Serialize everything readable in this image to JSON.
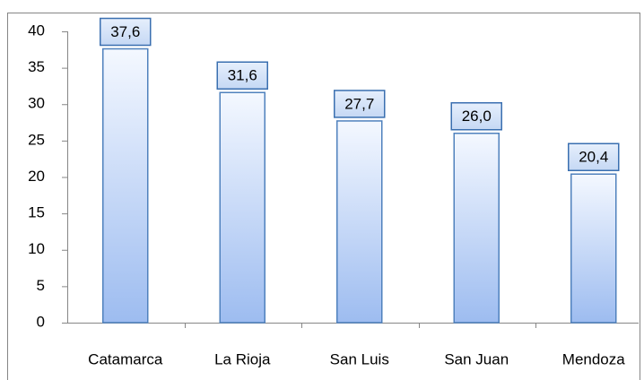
{
  "chart_data": {
    "type": "bar",
    "categories": [
      "Catamarca",
      "La Rioja",
      "San Luis",
      "San Juan",
      "Mendoza"
    ],
    "values": [
      37.6,
      31.6,
      27.7,
      26.0,
      20.4
    ],
    "value_labels": [
      "37,6",
      "31,6",
      "27,7",
      "26,0",
      "20,4"
    ],
    "color": "#4f81bd",
    "ylim": [
      0,
      40
    ],
    "yticks": [
      0,
      5,
      10,
      15,
      20,
      25,
      30,
      35,
      40
    ],
    "grid": false
  }
}
